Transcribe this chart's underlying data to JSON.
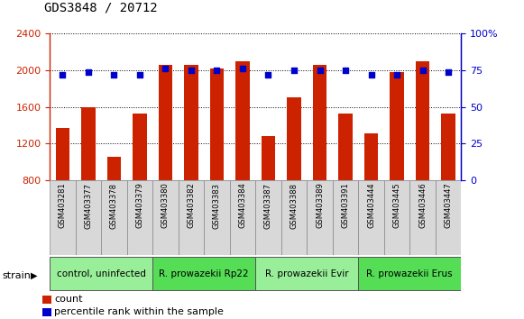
{
  "title": "GDS3848 / 20712",
  "samples": [
    "GSM403281",
    "GSM403377",
    "GSM403378",
    "GSM403379",
    "GSM403380",
    "GSM403382",
    "GSM403383",
    "GSM403384",
    "GSM403387",
    "GSM403388",
    "GSM403389",
    "GSM403391",
    "GSM403444",
    "GSM403445",
    "GSM403446",
    "GSM403447"
  ],
  "counts": [
    1370,
    1600,
    1060,
    1530,
    2060,
    2060,
    2020,
    2100,
    1280,
    1700,
    2060,
    1530,
    1310,
    1980,
    2100,
    1530
  ],
  "percentiles": [
    72,
    74,
    72,
    72,
    76,
    75,
    75,
    76,
    72,
    75,
    75,
    75,
    72,
    72,
    75,
    74
  ],
  "bar_color": "#cc2200",
  "dot_color": "#0000cc",
  "ylim_left": [
    800,
    2400
  ],
  "ylim_right": [
    0,
    100
  ],
  "yticks_left": [
    800,
    1200,
    1600,
    2000,
    2400
  ],
  "yticks_right": [
    0,
    25,
    50,
    75,
    100
  ],
  "groups": [
    {
      "label": "control, uninfected",
      "indices": [
        0,
        1,
        2,
        3
      ],
      "color": "#99ee99"
    },
    {
      "label": "R. prowazekii Rp22",
      "indices": [
        4,
        5,
        6,
        7
      ],
      "color": "#55dd55"
    },
    {
      "label": "R. prowazekii Evir",
      "indices": [
        8,
        9,
        10,
        11
      ],
      "color": "#99ee99"
    },
    {
      "label": "R. prowazekii Erus",
      "indices": [
        12,
        13,
        14,
        15
      ],
      "color": "#55dd55"
    }
  ],
  "legend_count_color": "#cc2200",
  "legend_dot_color": "#0000cc",
  "background_color": "#ffffff",
  "grid_color": "#000000"
}
